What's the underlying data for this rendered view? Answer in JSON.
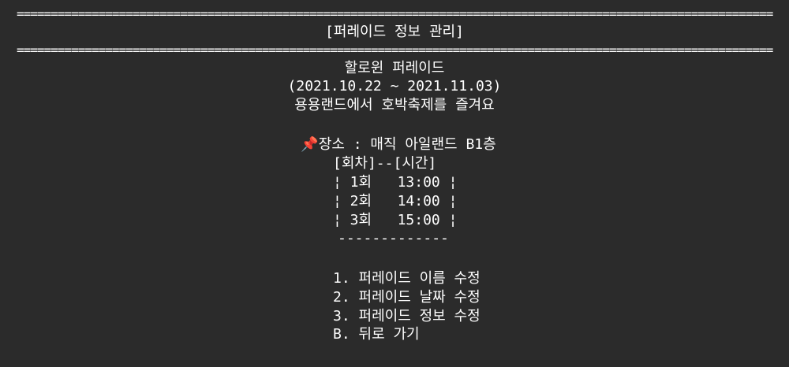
{
  "header": {
    "rule": "===============================================================================================================================",
    "title": "[퍼레이드 정보 관리]"
  },
  "parade": {
    "name": "할로윈 퍼레이드",
    "period": "(2021.10.22 ~ 2021.11.03)",
    "description": "용용랜드에서 호박축제를 즐겨요",
    "location_icon": "pushpin-icon",
    "location_glyph": "📌",
    "location": "장소 : 매직 아일랜드 B1층"
  },
  "schedule": {
    "header": "[회차]--[시간]",
    "rows": [
      "¦ 1회   13:00 ¦",
      "¦ 2회   14:00 ¦",
      "¦ 3회   15:00 ¦"
    ],
    "separator": "-------------"
  },
  "menu": {
    "items": [
      "1. 퍼레이드 이름 수정",
      "2. 퍼레이드 날짜 수정",
      "3. 퍼레이드 정보 수정",
      "B. 뒤로 가기"
    ],
    "prompt_icon": "pointing-hand-icon",
    "prompt_glyph": "☞"
  }
}
